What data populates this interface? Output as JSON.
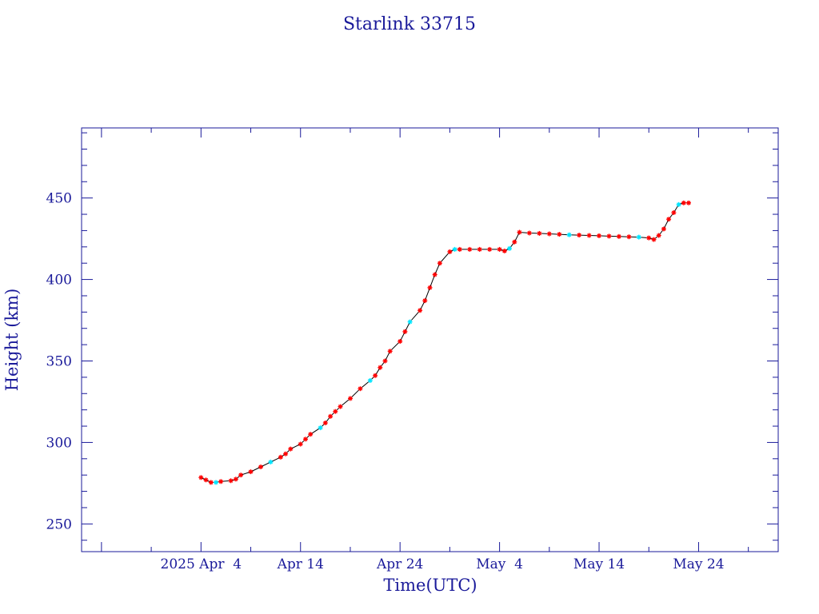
{
  "colors": {
    "axis": "#1a1a9a",
    "line": "#000000",
    "marker_primary": "#ff0000",
    "marker_secondary": "#00e5ff",
    "background": "#ffffff"
  },
  "chart_data": {
    "type": "scatter",
    "title": "Starlink 33715",
    "xlabel": "Time(UTC)",
    "ylabel": "Height (km)",
    "x_ticks": [
      "2025 Apr  4",
      "Apr 14",
      "Apr 24",
      "May  4",
      "May 14",
      "May 24"
    ],
    "y_ticks": [
      "250",
      "300",
      "350",
      "400",
      "450"
    ],
    "xlim": [
      "2025-03-23",
      "2025-06-01"
    ],
    "ylim": [
      233,
      493
    ],
    "grid": false,
    "series": [
      {
        "marker": "asterisk",
        "connected": true,
        "points": [
          [
            "2025-04-04",
            278.5
          ],
          [
            "2025-04-04",
            277
          ],
          [
            "2025-04-05",
            275.5
          ],
          [
            "2025-04-05",
            275.5
          ],
          [
            "2025-04-06",
            276
          ],
          [
            "2025-04-07",
            276.5
          ],
          [
            "2025-04-07",
            277.5
          ],
          [
            "2025-04-08",
            280
          ],
          [
            "2025-04-09",
            282
          ],
          [
            "2025-04-10",
            285
          ],
          [
            "2025-04-11",
            288
          ],
          [
            "2025-04-12",
            291
          ],
          [
            "2025-04-12",
            293
          ],
          [
            "2025-04-13",
            296
          ],
          [
            "2025-04-14",
            299
          ],
          [
            "2025-04-14",
            302
          ],
          [
            "2025-04-15",
            305
          ],
          [
            "2025-04-16",
            309
          ],
          [
            "2025-04-16",
            312
          ],
          [
            "2025-04-17",
            316
          ],
          [
            "2025-04-17",
            319
          ],
          [
            "2025-04-18",
            322
          ],
          [
            "2025-04-19",
            327
          ],
          [
            "2025-04-20",
            333
          ],
          [
            "2025-04-21",
            338
          ],
          [
            "2025-04-21",
            341
          ],
          [
            "2025-04-22",
            346
          ],
          [
            "2025-04-22",
            350
          ],
          [
            "2025-04-23",
            356
          ],
          [
            "2025-04-24",
            362
          ],
          [
            "2025-04-24",
            368
          ],
          [
            "2025-04-25",
            374
          ],
          [
            "2025-04-26",
            381
          ],
          [
            "2025-04-26",
            387
          ],
          [
            "2025-04-27",
            395
          ],
          [
            "2025-04-27",
            403
          ],
          [
            "2025-04-28",
            410
          ],
          [
            "2025-04-29",
            417
          ],
          [
            "2025-04-29",
            418.5
          ],
          [
            "2025-04-30",
            418.5
          ],
          [
            "2025-05-01",
            418.5
          ],
          [
            "2025-05-02",
            418.5
          ],
          [
            "2025-05-03",
            418.5
          ],
          [
            "2025-05-04",
            418.5
          ],
          [
            "2025-05-04",
            417.5
          ],
          [
            "2025-05-05",
            419
          ],
          [
            "2025-05-05",
            423
          ],
          [
            "2025-05-06",
            429
          ],
          [
            "2025-05-07",
            428.5
          ],
          [
            "2025-05-08",
            428.3
          ],
          [
            "2025-05-09",
            428
          ],
          [
            "2025-05-10",
            427.7
          ],
          [
            "2025-05-11",
            427.4
          ],
          [
            "2025-05-12",
            427.2
          ],
          [
            "2025-05-13",
            427
          ],
          [
            "2025-05-14",
            426.8
          ],
          [
            "2025-05-15",
            426.6
          ],
          [
            "2025-05-16",
            426.4
          ],
          [
            "2025-05-17",
            426.2
          ],
          [
            "2025-05-18",
            426
          ],
          [
            "2025-05-19",
            425.5
          ],
          [
            "2025-05-19",
            424.5
          ],
          [
            "2025-05-20",
            427
          ],
          [
            "2025-05-20",
            431
          ],
          [
            "2025-05-21",
            437
          ],
          [
            "2025-05-21",
            441
          ],
          [
            "2025-05-22",
            446
          ],
          [
            "2025-05-22",
            447
          ],
          [
            "2025-05-23",
            447
          ]
        ]
      }
    ]
  }
}
